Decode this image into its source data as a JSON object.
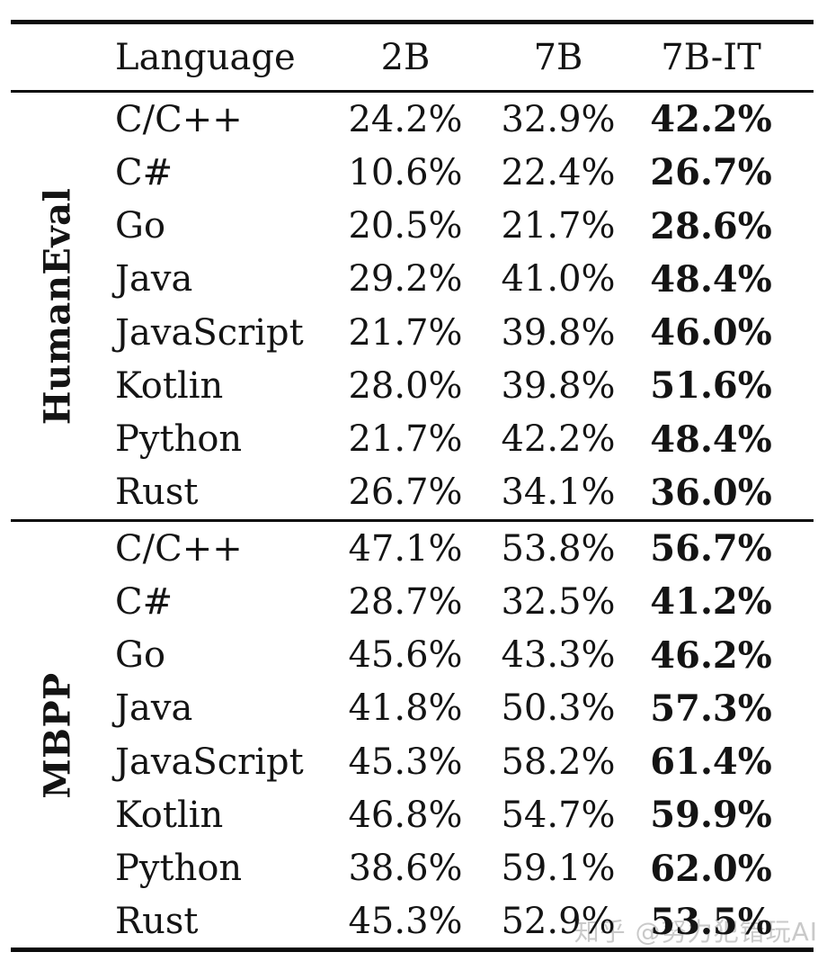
{
  "table": {
    "headers": {
      "language": "Language",
      "b2": "2B",
      "b7": "7B",
      "b7it": "7B-IT"
    },
    "sections": [
      {
        "label": "HumanEval",
        "rows": [
          {
            "language": "C/C++",
            "b2": "24.2%",
            "b7": "32.9%",
            "b7it": "42.2%"
          },
          {
            "language": "C#",
            "b2": "10.6%",
            "b7": "22.4%",
            "b7it": "26.7%"
          },
          {
            "language": "Go",
            "b2": "20.5%",
            "b7": "21.7%",
            "b7it": "28.6%"
          },
          {
            "language": "Java",
            "b2": "29.2%",
            "b7": "41.0%",
            "b7it": "48.4%"
          },
          {
            "language": "JavaScript",
            "b2": "21.7%",
            "b7": "39.8%",
            "b7it": "46.0%"
          },
          {
            "language": "Kotlin",
            "b2": "28.0%",
            "b7": "39.8%",
            "b7it": "51.6%"
          },
          {
            "language": "Python",
            "b2": "21.7%",
            "b7": "42.2%",
            "b7it": "48.4%"
          },
          {
            "language": "Rust",
            "b2": "26.7%",
            "b7": "34.1%",
            "b7it": "36.0%"
          }
        ]
      },
      {
        "label": "MBPP",
        "rows": [
          {
            "language": "C/C++",
            "b2": "47.1%",
            "b7": "53.8%",
            "b7it": "56.7%"
          },
          {
            "language": "C#",
            "b2": "28.7%",
            "b7": "32.5%",
            "b7it": "41.2%"
          },
          {
            "language": "Go",
            "b2": "45.6%",
            "b7": "43.3%",
            "b7it": "46.2%"
          },
          {
            "language": "Java",
            "b2": "41.8%",
            "b7": "50.3%",
            "b7it": "57.3%"
          },
          {
            "language": "JavaScript",
            "b2": "45.3%",
            "b7": "58.2%",
            "b7it": "61.4%"
          },
          {
            "language": "Kotlin",
            "b2": "46.8%",
            "b7": "54.7%",
            "b7it": "59.9%"
          },
          {
            "language": "Python",
            "b2": "38.6%",
            "b7": "59.1%",
            "b7it": "62.0%"
          },
          {
            "language": "Rust",
            "b2": "45.3%",
            "b7": "52.9%",
            "b7it": "53.5%"
          }
        ]
      }
    ]
  },
  "watermark": "知乎 @努力犯错玩AI",
  "colors": {
    "text": "#141414",
    "rule": "#0c0c0c",
    "watermark": "#c9c9c9",
    "background": "#ffffff"
  },
  "chart_data": {
    "type": "table",
    "title": "",
    "columns": [
      "Language",
      "2B",
      "7B",
      "7B-IT"
    ],
    "units": "%",
    "bold_column": "7B-IT",
    "sections": [
      {
        "name": "HumanEval",
        "rows": [
          [
            "C/C++",
            24.2,
            32.9,
            42.2
          ],
          [
            "C#",
            10.6,
            22.4,
            26.7
          ],
          [
            "Go",
            20.5,
            21.7,
            28.6
          ],
          [
            "Java",
            29.2,
            41.0,
            48.4
          ],
          [
            "JavaScript",
            21.7,
            39.8,
            46.0
          ],
          [
            "Kotlin",
            28.0,
            39.8,
            51.6
          ],
          [
            "Python",
            21.7,
            42.2,
            48.4
          ],
          [
            "Rust",
            26.7,
            34.1,
            36.0
          ]
        ]
      },
      {
        "name": "MBPP",
        "rows": [
          [
            "C/C++",
            47.1,
            53.8,
            56.7
          ],
          [
            "C#",
            28.7,
            32.5,
            41.2
          ],
          [
            "Go",
            45.6,
            43.3,
            46.2
          ],
          [
            "Java",
            41.8,
            50.3,
            57.3
          ],
          [
            "JavaScript",
            45.3,
            58.2,
            61.4
          ],
          [
            "Kotlin",
            46.8,
            54.7,
            59.9
          ],
          [
            "Python",
            38.6,
            59.1,
            62.0
          ],
          [
            "Rust",
            45.3,
            52.9,
            53.5
          ]
        ]
      }
    ]
  }
}
